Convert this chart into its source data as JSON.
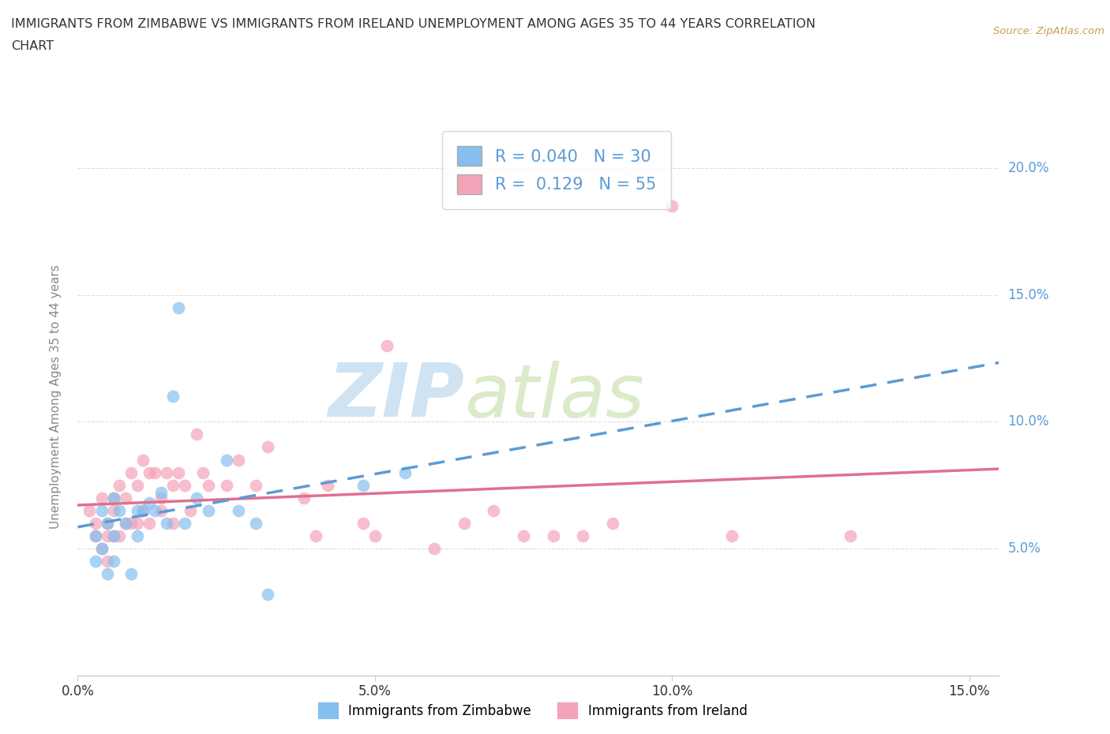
{
  "title_line1": "IMMIGRANTS FROM ZIMBABWE VS IMMIGRANTS FROM IRELAND UNEMPLOYMENT AMONG AGES 35 TO 44 YEARS CORRELATION",
  "title_line2": "CHART",
  "source_text": "Source: ZipAtlas.com",
  "ylabel": "Unemployment Among Ages 35 to 44 years",
  "xlim": [
    0.0,
    0.155
  ],
  "ylim": [
    0.0,
    0.22
  ],
  "xticks": [
    0.0,
    0.05,
    0.1,
    0.15
  ],
  "xticklabels": [
    "0.0%",
    "5.0%",
    "10.0%",
    "15.0%"
  ],
  "yticks": [
    0.05,
    0.1,
    0.15,
    0.2
  ],
  "yticklabels": [
    "5.0%",
    "10.0%",
    "15.0%",
    "20.0%"
  ],
  "legend_labels": [
    "Immigrants from Zimbabwe",
    "Immigrants from Ireland"
  ],
  "r_zimbabwe": 0.04,
  "n_zimbabwe": 30,
  "r_ireland": 0.129,
  "n_ireland": 55,
  "zimbabwe_color": "#85bfef",
  "ireland_color": "#f4a3b8",
  "zimbabwe_line_color": "#5b9bd5",
  "ireland_line_color": "#e07090",
  "watermark_zip": "ZIP",
  "watermark_atlas": "atlas",
  "zimbabwe_x": [
    0.003,
    0.003,
    0.004,
    0.004,
    0.005,
    0.005,
    0.006,
    0.006,
    0.006,
    0.007,
    0.008,
    0.009,
    0.01,
    0.01,
    0.011,
    0.012,
    0.013,
    0.014,
    0.015,
    0.016,
    0.017,
    0.018,
    0.02,
    0.022,
    0.025,
    0.027,
    0.03,
    0.032,
    0.048,
    0.055
  ],
  "zimbabwe_y": [
    0.055,
    0.045,
    0.065,
    0.05,
    0.06,
    0.04,
    0.07,
    0.055,
    0.045,
    0.065,
    0.06,
    0.04,
    0.065,
    0.055,
    0.065,
    0.068,
    0.065,
    0.072,
    0.06,
    0.11,
    0.145,
    0.06,
    0.07,
    0.065,
    0.085,
    0.065,
    0.06,
    0.032,
    0.075,
    0.08
  ],
  "ireland_x": [
    0.002,
    0.003,
    0.003,
    0.004,
    0.004,
    0.005,
    0.005,
    0.005,
    0.006,
    0.006,
    0.006,
    0.007,
    0.007,
    0.008,
    0.008,
    0.009,
    0.009,
    0.01,
    0.01,
    0.011,
    0.011,
    0.012,
    0.012,
    0.013,
    0.014,
    0.014,
    0.015,
    0.016,
    0.016,
    0.017,
    0.018,
    0.019,
    0.02,
    0.021,
    0.022,
    0.025,
    0.027,
    0.03,
    0.032,
    0.038,
    0.04,
    0.042,
    0.048,
    0.05,
    0.052,
    0.06,
    0.065,
    0.07,
    0.075,
    0.08,
    0.085,
    0.09,
    0.1,
    0.11,
    0.13
  ],
  "ireland_y": [
    0.065,
    0.06,
    0.055,
    0.07,
    0.05,
    0.06,
    0.055,
    0.045,
    0.07,
    0.065,
    0.055,
    0.075,
    0.055,
    0.07,
    0.06,
    0.08,
    0.06,
    0.075,
    0.06,
    0.085,
    0.065,
    0.08,
    0.06,
    0.08,
    0.07,
    0.065,
    0.08,
    0.075,
    0.06,
    0.08,
    0.075,
    0.065,
    0.095,
    0.08,
    0.075,
    0.075,
    0.085,
    0.075,
    0.09,
    0.07,
    0.055,
    0.075,
    0.06,
    0.055,
    0.13,
    0.05,
    0.06,
    0.065,
    0.055,
    0.055,
    0.055,
    0.06,
    0.185,
    0.055,
    0.055
  ]
}
